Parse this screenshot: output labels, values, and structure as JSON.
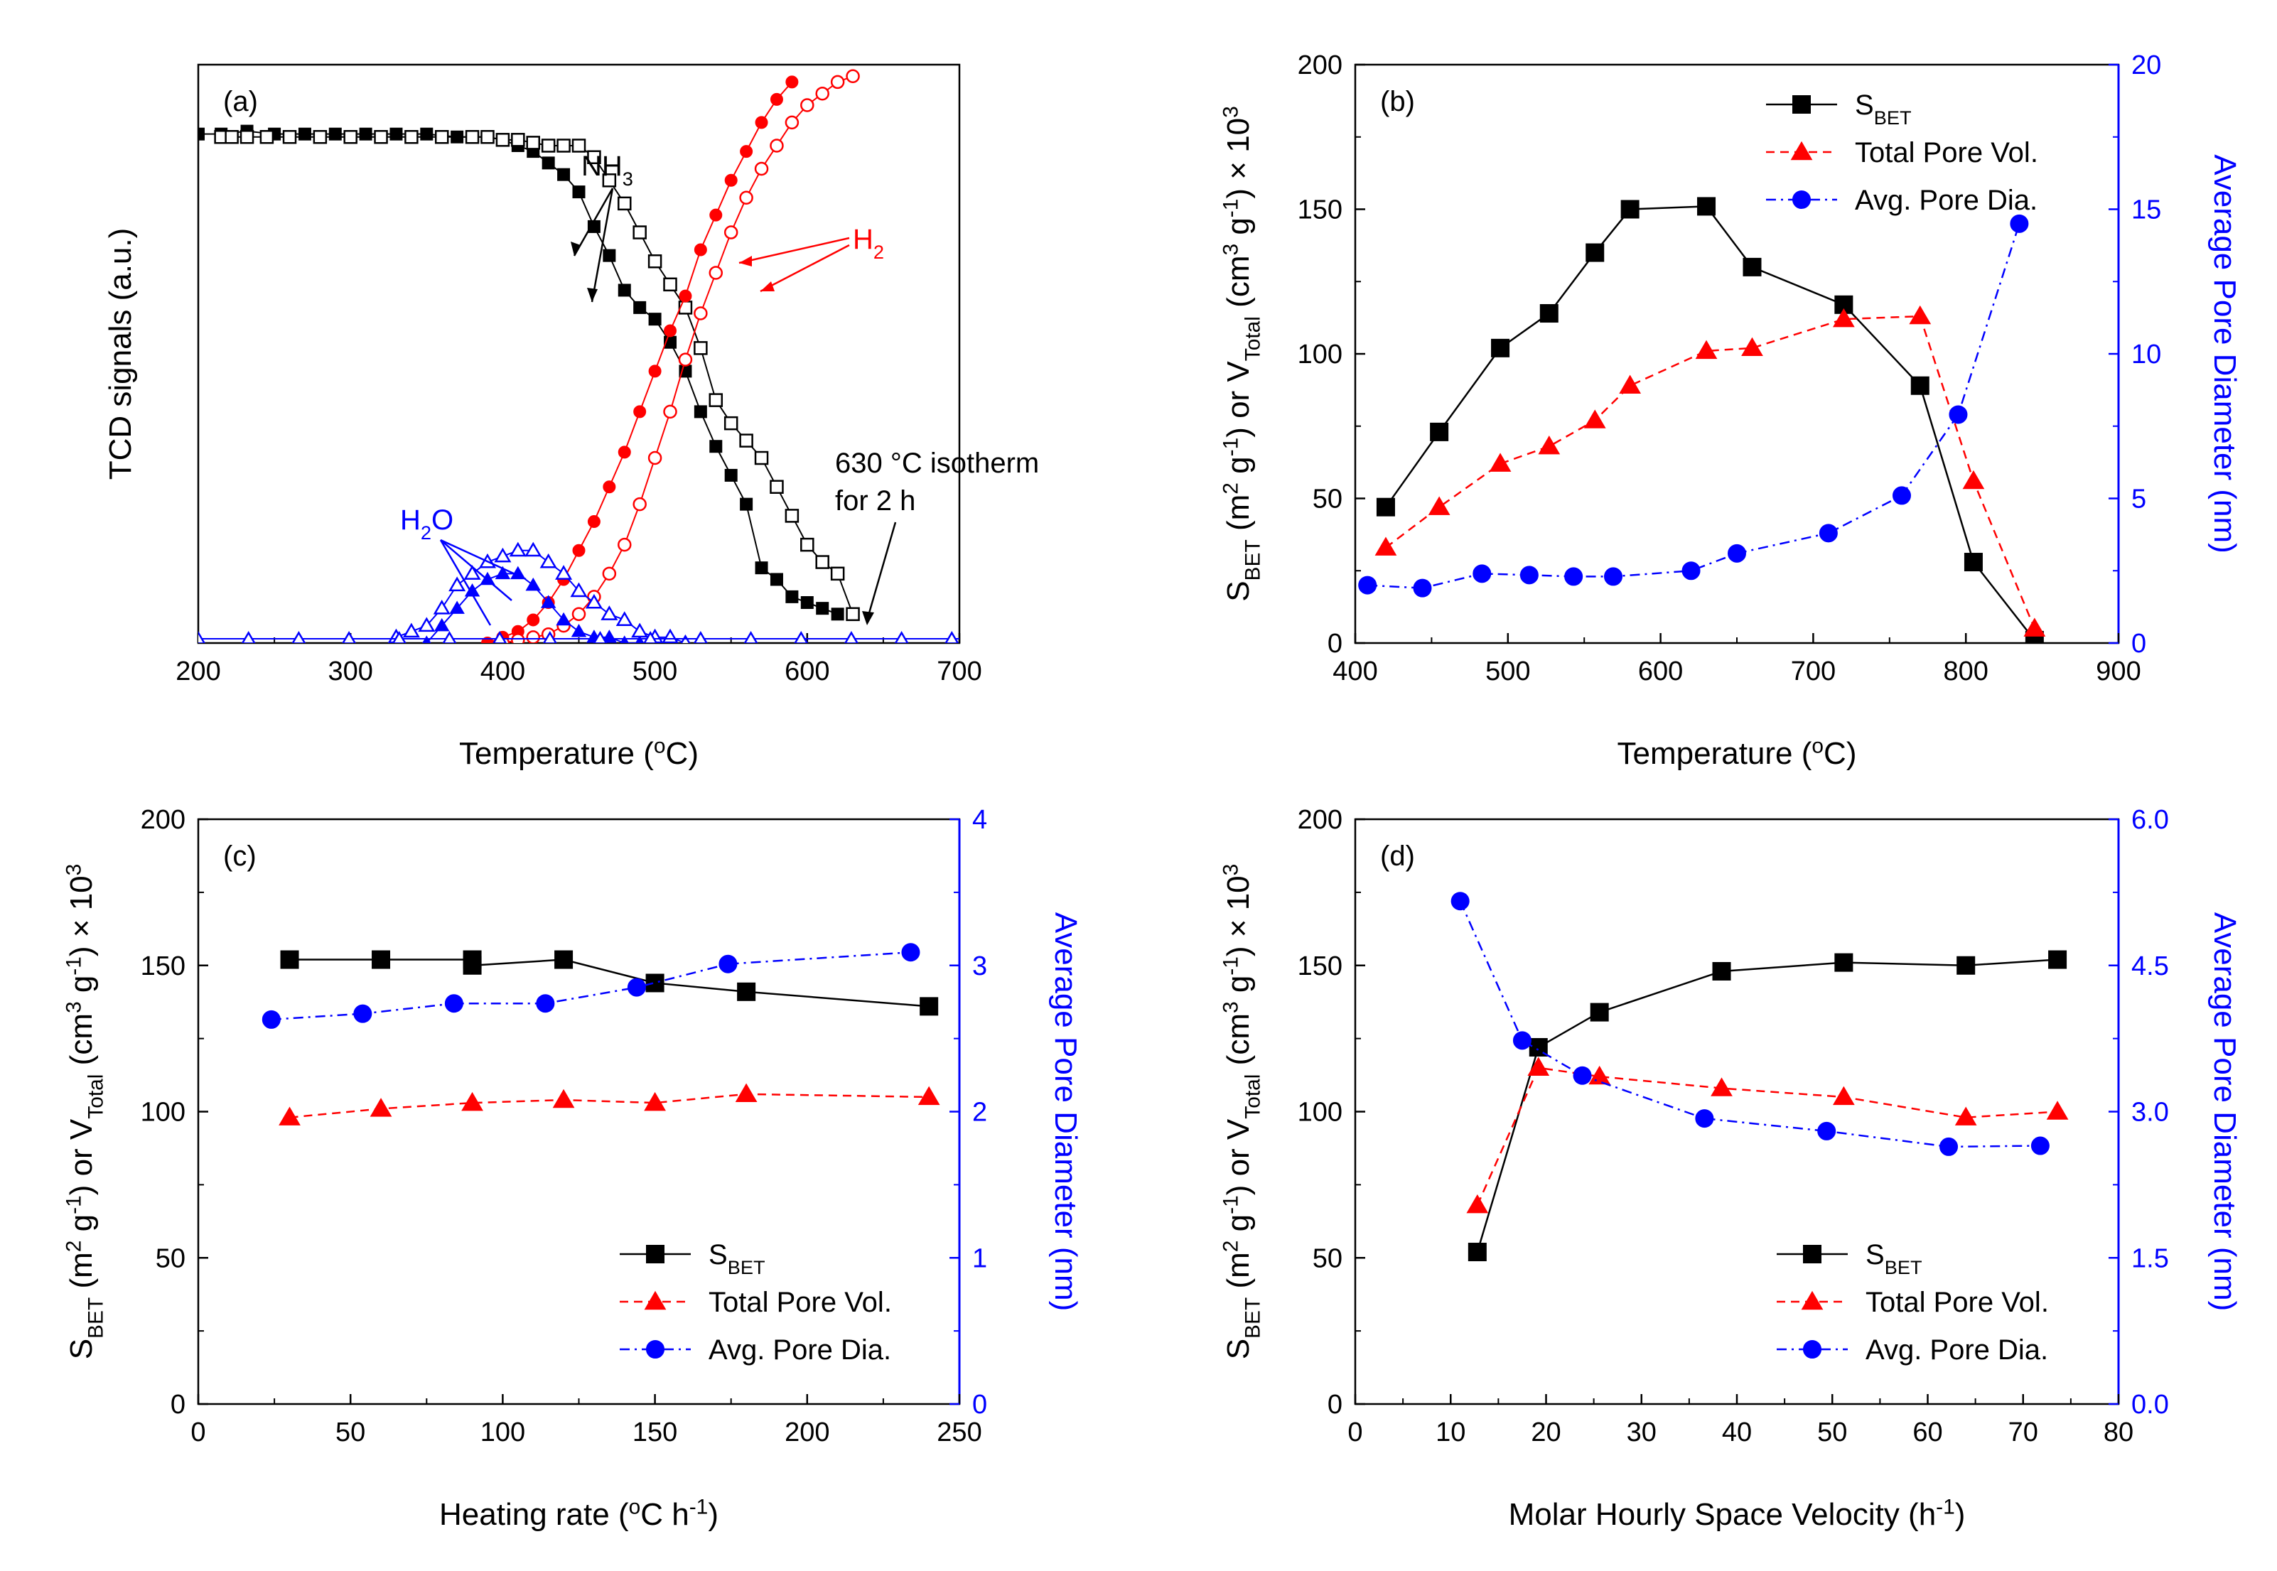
{
  "colors": {
    "black": "#000000",
    "red": "#ff0000",
    "blue": "#0000ff"
  },
  "chart_data": [
    {
      "panel": "(a)",
      "type": "line",
      "xlabel": "Temperature (°C)",
      "ylabel": "TCD signals (a.u.)",
      "xlim": [
        200,
        700
      ],
      "ylim": [
        0,
        1
      ],
      "xticks": [
        200,
        300,
        400,
        500,
        600,
        700
      ],
      "series": [
        {
          "name": "NH3 (filled)",
          "color": "#000000",
          "marker": "square-filled",
          "x": [
            200,
            215,
            232,
            250,
            270,
            290,
            310,
            330,
            350,
            370,
            390,
            400,
            410,
            420,
            430,
            440,
            450,
            460,
            470,
            480,
            490,
            500,
            510,
            520,
            530,
            540,
            550,
            560,
            570,
            580,
            590,
            600,
            610,
            620
          ],
          "y": [
            0.88,
            0.88,
            0.885,
            0.88,
            0.88,
            0.88,
            0.88,
            0.88,
            0.88,
            0.875,
            0.875,
            0.87,
            0.86,
            0.85,
            0.83,
            0.81,
            0.78,
            0.72,
            0.67,
            0.61,
            0.58,
            0.56,
            0.52,
            0.47,
            0.4,
            0.34,
            0.29,
            0.24,
            0.13,
            0.11,
            0.08,
            0.07,
            0.06,
            0.05
          ]
        },
        {
          "name": "NH3 (open)",
          "color": "#000000",
          "marker": "square-open",
          "x": [
            215,
            222,
            232,
            245,
            260,
            280,
            300,
            320,
            340,
            360,
            380,
            390,
            400,
            410,
            420,
            430,
            440,
            450,
            460,
            470,
            480,
            490,
            500,
            510,
            520,
            530,
            540,
            550,
            560,
            570,
            580,
            590,
            600,
            610,
            620,
            630
          ],
          "y": [
            0.875,
            0.875,
            0.875,
            0.875,
            0.875,
            0.875,
            0.875,
            0.875,
            0.875,
            0.875,
            0.875,
            0.875,
            0.87,
            0.87,
            0.865,
            0.86,
            0.86,
            0.86,
            0.84,
            0.8,
            0.76,
            0.71,
            0.66,
            0.62,
            0.58,
            0.51,
            0.42,
            0.38,
            0.35,
            0.32,
            0.27,
            0.22,
            0.17,
            0.14,
            0.12,
            0.05
          ]
        },
        {
          "name": "H2 (filled)",
          "color": "#ff0000",
          "marker": "circle-filled",
          "x": [
            390,
            400,
            410,
            420,
            430,
            440,
            450,
            460,
            470,
            480,
            490,
            500,
            510,
            520,
            530,
            540,
            550,
            560,
            570,
            580,
            590
          ],
          "y": [
            0.0,
            0.01,
            0.02,
            0.04,
            0.07,
            0.11,
            0.16,
            0.21,
            0.27,
            0.33,
            0.4,
            0.47,
            0.54,
            0.6,
            0.68,
            0.74,
            0.8,
            0.85,
            0.9,
            0.94,
            0.97
          ]
        },
        {
          "name": "H2 (open)",
          "color": "#ff0000",
          "marker": "circle-open",
          "x": [
            400,
            410,
            420,
            430,
            440,
            450,
            460,
            470,
            480,
            490,
            500,
            510,
            520,
            530,
            540,
            550,
            560,
            570,
            580,
            590,
            600,
            610,
            620,
            630
          ],
          "y": [
            0.0,
            0.005,
            0.01,
            0.015,
            0.03,
            0.05,
            0.08,
            0.12,
            0.17,
            0.24,
            0.32,
            0.4,
            0.49,
            0.57,
            0.64,
            0.71,
            0.77,
            0.82,
            0.86,
            0.9,
            0.93,
            0.95,
            0.97,
            0.98
          ]
        },
        {
          "name": "H2O (filled)",
          "color": "#0000ff",
          "marker": "triangle-filled",
          "x": [
            350,
            360,
            370,
            380,
            390,
            400,
            410,
            420,
            430,
            440,
            450,
            460,
            470,
            480,
            490,
            500
          ],
          "y": [
            0.0,
            0.03,
            0.06,
            0.09,
            0.11,
            0.12,
            0.12,
            0.1,
            0.07,
            0.04,
            0.02,
            0.01,
            0.01,
            0.0,
            0.0,
            0.0
          ]
        },
        {
          "name": "H2O (open)",
          "color": "#0000ff",
          "marker": "triangle-open",
          "x": [
            330,
            340,
            350,
            360,
            370,
            380,
            390,
            400,
            410,
            420,
            430,
            440,
            450,
            460,
            470,
            480,
            490,
            500,
            510,
            520
          ],
          "y": [
            0.01,
            0.02,
            0.03,
            0.06,
            0.1,
            0.12,
            0.14,
            0.15,
            0.16,
            0.16,
            0.14,
            0.12,
            0.09,
            0.07,
            0.05,
            0.04,
            0.02,
            0.01,
            0.01,
            0.0
          ]
        }
      ],
      "annotations": {
        "nh3": "NH3",
        "h2": "H2",
        "h2o": "H2O",
        "isotherm_line1": "630 °C isotherm",
        "isotherm_line2": "for 2 h"
      }
    },
    {
      "panel": "(b)",
      "type": "line",
      "xlabel": "Temperature (°C)",
      "ylabel": "SBET (m2 g-1) or VTotal (cm3 g-1) × 10^3",
      "y2label": "Average Pore Diameter (nm)",
      "xlim": [
        400,
        900
      ],
      "ylim": [
        0,
        200
      ],
      "y2lim": [
        0,
        20
      ],
      "xticks": [
        400,
        500,
        600,
        700,
        800,
        900
      ],
      "yticks": [
        0,
        50,
        100,
        150,
        200
      ],
      "y2ticks": [
        0,
        5,
        10,
        15,
        20
      ],
      "series": [
        {
          "name": "S_BET",
          "axis": "left",
          "color": "#000000",
          "marker": "square",
          "dash": "solid",
          "x": [
            420,
            455,
            495,
            527,
            557,
            580,
            630,
            660,
            720,
            770,
            805,
            845
          ],
          "y": [
            47,
            73,
            102,
            114,
            135,
            150,
            151,
            130,
            117,
            89,
            28,
            1
          ]
        },
        {
          "name": "Total Pore Vol.",
          "axis": "left",
          "color": "#ff0000",
          "marker": "triangle",
          "dash": "dashed",
          "x": [
            420,
            455,
            495,
            527,
            557,
            580,
            630,
            660,
            720,
            770,
            805,
            845
          ],
          "y": [
            33,
            47,
            62,
            68,
            77,
            89,
            101,
            102,
            112,
            113,
            56,
            5
          ]
        },
        {
          "name": "Avg. Pore Dia.",
          "axis": "right",
          "color": "#0000ff",
          "marker": "circle",
          "dash": "dashdot",
          "x": [
            408,
            444,
            483,
            514,
            543,
            569,
            620,
            650,
            710,
            758,
            795,
            835
          ],
          "y": [
            2.0,
            1.9,
            2.4,
            2.35,
            2.3,
            2.3,
            2.5,
            3.1,
            3.8,
            5.1,
            7.9,
            14.5
          ]
        }
      ],
      "legend": [
        "S_BET",
        "Total Pore Vol.",
        "Avg. Pore Dia."
      ]
    },
    {
      "panel": "(c)",
      "type": "line",
      "xlabel": "Heating rate (°C h-1)",
      "ylabel": "SBET (m2 g-1) or VTotal (cm3 g-1) × 10^3",
      "y2label": "Average Pore Diameter (nm)",
      "xlim": [
        0,
        250
      ],
      "ylim": [
        0,
        200
      ],
      "y2lim": [
        0,
        4
      ],
      "xticks": [
        0,
        50,
        100,
        150,
        200,
        250
      ],
      "yticks": [
        0,
        50,
        100,
        150,
        200
      ],
      "y2ticks": [
        0,
        1,
        2,
        3,
        4
      ],
      "series": [
        {
          "name": "S_BET",
          "axis": "left",
          "color": "#000000",
          "marker": "square",
          "dash": "solid",
          "x": [
            30,
            60,
            90,
            90,
            120,
            150,
            180,
            240
          ],
          "y": [
            152,
            152,
            152,
            150,
            152,
            144,
            141,
            136
          ]
        },
        {
          "name": "Total Pore Vol.",
          "axis": "left",
          "color": "#ff0000",
          "marker": "triangle",
          "dash": "dashed",
          "x": [
            30,
            60,
            90,
            120,
            150,
            180,
            240
          ],
          "y": [
            98,
            101,
            103,
            104,
            103,
            106,
            105
          ]
        },
        {
          "name": "Avg. Pore Dia.",
          "axis": "right",
          "color": "#0000ff",
          "marker": "circle",
          "dash": "dashdot",
          "x": [
            24,
            54,
            84,
            114,
            144,
            174,
            234
          ],
          "y": [
            2.63,
            2.67,
            2.74,
            2.74,
            2.85,
            3.01,
            3.09
          ]
        }
      ],
      "legend": [
        "S_BET",
        "Total Pore Vol.",
        "Avg. Pore Dia."
      ]
    },
    {
      "panel": "(d)",
      "type": "line",
      "xlabel": "Molar Hourly Space Velocity (h-1)",
      "ylabel": "SBET (m2 g-1) or VTotal (cm3 g-1) × 10^3",
      "y2label": "Average Pore Diameter (nm)",
      "xlim": [
        0,
        80
      ],
      "ylim": [
        0,
        200
      ],
      "y2lim": [
        0,
        6
      ],
      "xticks": [
        0,
        10,
        20,
        30,
        40,
        50,
        60,
        70,
        80
      ],
      "yticks": [
        0,
        50,
        100,
        150,
        200
      ],
      "y2ticks": [
        "0.0",
        "1.5",
        "3.0",
        "4.5",
        "6.0"
      ],
      "series": [
        {
          "name": "S_BET",
          "axis": "left",
          "color": "#000000",
          "marker": "square",
          "dash": "solid",
          "x": [
            12.8,
            19.2,
            25.6,
            38.4,
            51.2,
            64,
            73.6
          ],
          "y": [
            52,
            122,
            134,
            148,
            151,
            150,
            152
          ]
        },
        {
          "name": "Total Pore Vol.",
          "axis": "left",
          "color": "#ff0000",
          "marker": "triangle",
          "dash": "dashed",
          "x": [
            12.8,
            19.2,
            25.6,
            38.4,
            51.2,
            64,
            73.6
          ],
          "y": [
            68,
            115,
            112,
            108,
            105,
            98,
            100
          ]
        },
        {
          "name": "Avg. Pore Dia.",
          "axis": "right",
          "color": "#0000ff",
          "marker": "circle",
          "dash": "dashdot",
          "x": [
            11,
            17.5,
            23.8,
            36.6,
            49.4,
            62.2,
            71.8
          ],
          "y": [
            5.16,
            3.73,
            3.37,
            2.93,
            2.8,
            2.64,
            2.65
          ]
        }
      ],
      "legend": [
        "S_BET",
        "Total Pore Vol.",
        "Avg. Pore Dia."
      ]
    }
  ]
}
